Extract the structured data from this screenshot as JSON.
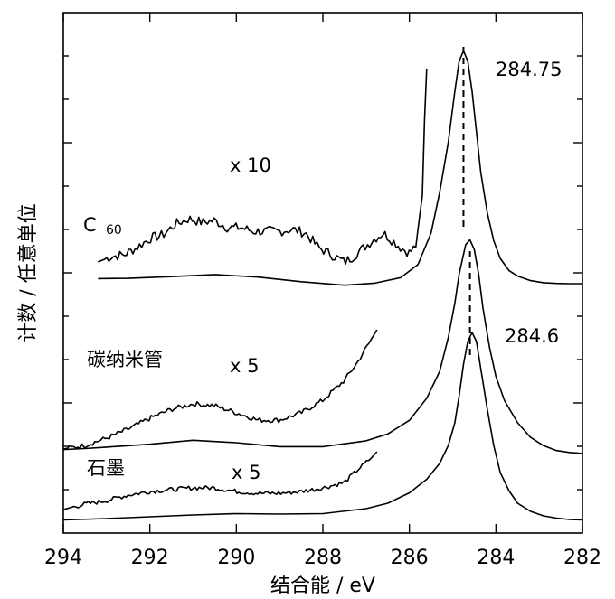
{
  "chart_data": {
    "type": "line",
    "xlabel": "结合能 / eV",
    "ylabel": "计数 / 任意单位",
    "xlim": [
      294,
      282
    ],
    "x_reversed": true,
    "xticks": [
      294,
      292,
      290,
      288,
      286,
      284,
      282
    ],
    "tick_labels": [
      "294",
      "292",
      "290",
      "288",
      "286",
      "284",
      "282"
    ],
    "grid": false,
    "annotations": {
      "c60_label": "C",
      "c60_sub": "60",
      "cnt_label": "碳纳米管",
      "graphite_label": "石墨",
      "x10": "x 10",
      "x5_cnt": "x 5",
      "x5_graphite": "x 5",
      "peak_c60": "284.75",
      "peak_cnt": "284.6"
    },
    "peak_positions": [
      284.75,
      284.6
    ],
    "series": [
      {
        "id": "c60",
        "x": [
          293.2,
          292.5,
          291.5,
          290.5,
          289.5,
          288.5,
          287.5,
          286.8,
          286.2,
          285.8,
          285.5,
          285.3,
          285.1,
          284.95,
          284.85,
          284.75,
          284.65,
          284.55,
          284.45,
          284.35,
          284.2,
          284.05,
          283.9,
          283.7,
          283.5,
          283.2,
          282.9,
          282.6,
          282.3,
          282.0
        ],
        "y": [
          1.0,
          1.05,
          1.4,
          1.8,
          1.3,
          0.4,
          -0.3,
          0.1,
          1.2,
          3.8,
          10,
          18,
          28,
          38,
          44,
          46,
          44,
          38,
          30,
          22,
          14,
          8.5,
          5,
          2.6,
          1.5,
          0.6,
          0.2,
          0.05,
          0.0,
          0.0
        ]
      },
      {
        "id": "c60_x10",
        "x": [
          293.2,
          292.9,
          292.6,
          292.3,
          292.0,
          291.7,
          291.4,
          291.1,
          290.8,
          290.5,
          290.2,
          289.9,
          289.6,
          289.3,
          289.0,
          288.7,
          288.4,
          288.1,
          287.8,
          287.5,
          287.3,
          287.0,
          286.8,
          286.6,
          286.4,
          286.2,
          286.0,
          285.85,
          285.7,
          285.65,
          285.6
        ],
        "y": [
          3,
          6,
          7,
          11,
          16,
          18,
          24,
          27,
          25,
          26,
          22,
          22,
          20,
          20,
          20,
          21,
          19,
          11,
          7,
          3,
          6,
          12,
          16,
          19,
          15,
          11,
          8,
          12,
          40,
          82,
          110
        ]
      },
      {
        "id": "cnt",
        "x": [
          294.0,
          293.5,
          293.0,
          292.0,
          291.0,
          290.0,
          289.0,
          288.0,
          287.0,
          286.5,
          286.0,
          285.6,
          285.3,
          285.1,
          284.95,
          284.85,
          284.75,
          284.7,
          284.6,
          284.5,
          284.4,
          284.3,
          284.15,
          284.0,
          283.8,
          283.5,
          283.2,
          282.9,
          282.6,
          282.3,
          282.0
        ],
        "y": [
          1.0,
          1.2,
          1.5,
          2.1,
          2.9,
          2.4,
          1.6,
          1.6,
          2.8,
          4.2,
          7,
          11.5,
          17,
          24,
          31,
          37,
          41,
          43,
          44,
          42,
          37,
          30,
          22,
          16,
          11,
          6.5,
          3.5,
          1.8,
          0.8,
          0.4,
          0.2
        ]
      },
      {
        "id": "cnt_x5",
        "x": [
          294.0,
          293.5,
          293.0,
          292.5,
          292.0,
          291.5,
          291.0,
          290.5,
          290.0,
          289.5,
          289.0,
          288.5,
          288.0,
          287.5,
          287.2,
          286.9,
          286.75
        ],
        "y": [
          0,
          2,
          6,
          11,
          17,
          22,
          25,
          24,
          20,
          16,
          16,
          20,
          27,
          38,
          48,
          60,
          66
        ]
      },
      {
        "id": "graphite",
        "x": [
          294.0,
          293.0,
          292.0,
          291.0,
          290.0,
          289.0,
          288.0,
          287.0,
          286.5,
          286.0,
          285.6,
          285.3,
          285.1,
          284.95,
          284.85,
          284.75,
          284.65,
          284.55,
          284.45,
          284.35,
          284.2,
          284.05,
          283.9,
          283.7,
          283.5,
          283.2,
          282.9,
          282.6,
          282.3,
          282.0
        ],
        "y": [
          0.5,
          0.8,
          1.2,
          1.6,
          1.9,
          1.8,
          1.9,
          3.0,
          4.2,
          6.5,
          9.5,
          13,
          17,
          22,
          28,
          35,
          40,
          42,
          40,
          34,
          25,
          17,
          11,
          7,
          4.2,
          2.4,
          1.4,
          0.9,
          0.6,
          0.5
        ]
      },
      {
        "id": "graphite_x5",
        "x": [
          294.0,
          293.5,
          293.0,
          292.5,
          292.0,
          291.5,
          291.0,
          290.5,
          290.0,
          289.5,
          289.0,
          288.5,
          288.0,
          287.5,
          287.2,
          286.9,
          286.75
        ],
        "y": [
          0,
          3,
          5,
          8,
          10,
          11,
          12,
          12,
          10,
          9,
          9,
          10,
          12,
          15,
          22,
          28,
          32
        ]
      }
    ]
  }
}
